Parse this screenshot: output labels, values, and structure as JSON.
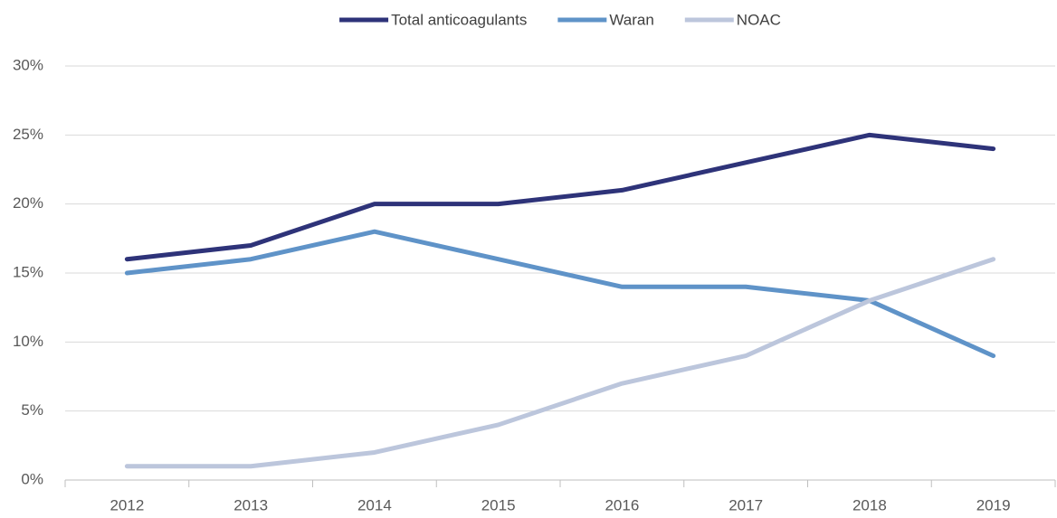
{
  "chart_data": {
    "type": "line",
    "categories": [
      "2012",
      "2013",
      "2014",
      "2015",
      "2016",
      "2017",
      "2018",
      "2019"
    ],
    "series": [
      {
        "name": "Total anticoagulants",
        "color": "#2e3379",
        "values": [
          16,
          17,
          20,
          20,
          21,
          23,
          25,
          24
        ]
      },
      {
        "name": "Waran",
        "color": "#5f93c8",
        "values": [
          15,
          16,
          18,
          16,
          14,
          14,
          13,
          9
        ]
      },
      {
        "name": "NOAC",
        "color": "#bcc6dc",
        "values": [
          1,
          1,
          2,
          4,
          7,
          9,
          13,
          16
        ]
      }
    ],
    "ylim": [
      0,
      30
    ],
    "yticks": [
      {
        "value": 0,
        "label": "0%"
      },
      {
        "value": 5,
        "label": "5%"
      },
      {
        "value": 10,
        "label": "10%"
      },
      {
        "value": 15,
        "label": "15%"
      },
      {
        "value": 20,
        "label": "20%"
      },
      {
        "value": 25,
        "label": "25%"
      },
      {
        "value": 30,
        "label": "30%"
      }
    ],
    "grid": true,
    "legend": "top"
  }
}
